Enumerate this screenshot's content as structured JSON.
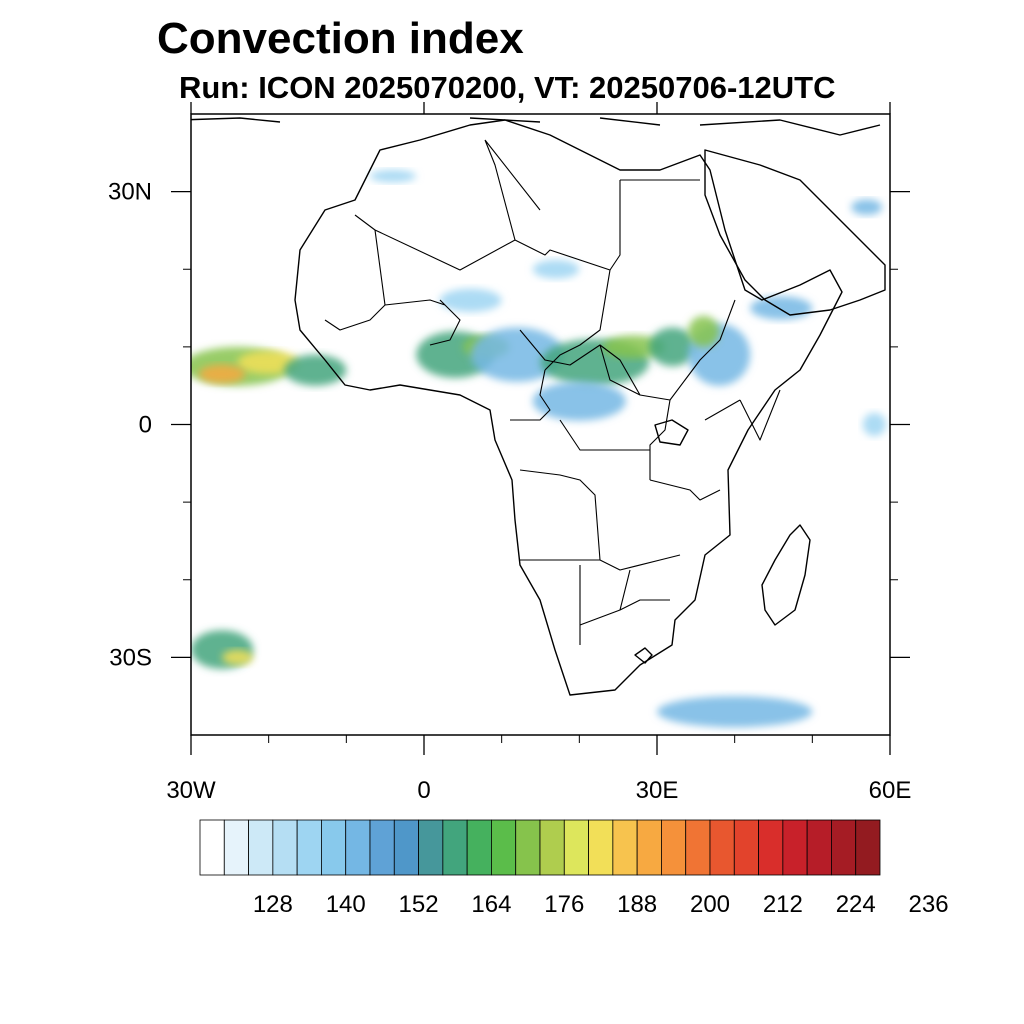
{
  "title": "Convection index",
  "subtitle": "Run: ICON 2025070200,  VT: 20250706-12UTC",
  "map": {
    "lon_range": [
      -30,
      60
    ],
    "lat_range": [
      -40,
      40
    ],
    "lon_ticks": [
      {
        "lon": -30,
        "label": "30W"
      },
      {
        "lon": 0,
        "label": "0"
      },
      {
        "lon": 30,
        "label": "30E"
      },
      {
        "lon": 60,
        "label": "60E"
      }
    ],
    "lat_ticks": [
      {
        "lat": 30,
        "label": "30N"
      },
      {
        "lat": 0,
        "label": "0"
      },
      {
        "lat": -30,
        "label": "30S"
      }
    ],
    "minor_lon_ticks": [
      -20,
      -10,
      10,
      20,
      40,
      50
    ],
    "minor_lat_ticks": [
      20,
      10,
      -10,
      -20
    ]
  },
  "colorbar": {
    "colors": [
      "#ffffff",
      "#e6f3fb",
      "#cde9f7",
      "#b5def3",
      "#9ed5f2",
      "#88c9ec",
      "#74b7e4",
      "#5fa2d6",
      "#4f97c9",
      "#46979b",
      "#42a57d",
      "#45b15e",
      "#5bbd4a",
      "#86c34c",
      "#afcd4e",
      "#dde65c",
      "#f2df58",
      "#f7c34e",
      "#f7a941",
      "#f5913a",
      "#f07434",
      "#e8572f",
      "#e2432c",
      "#d92e2b",
      "#c8212a",
      "#b61d28",
      "#a51c24",
      "#931b20"
    ],
    "labels": [
      "128",
      "140",
      "152",
      "164",
      "176",
      "188",
      "200",
      "212",
      "224",
      "236"
    ]
  },
  "field_blobs": [
    {
      "lon": -24,
      "lat": 7.5,
      "rx": 7,
      "ry": 2.5,
      "level": 3
    },
    {
      "lon": -20,
      "lat": 8,
      "rx": 4,
      "ry": 1.5,
      "level": 4
    },
    {
      "lon": -26,
      "lat": 6.5,
      "rx": 3,
      "ry": 1.2,
      "level": 5
    },
    {
      "lon": -14,
      "lat": 7,
      "rx": 4,
      "ry": 2,
      "level": 2
    },
    {
      "lon": 4,
      "lat": 9,
      "rx": 5,
      "ry": 3,
      "level": 2
    },
    {
      "lon": 8,
      "lat": 10,
      "rx": 3,
      "ry": 1.5,
      "level": 3
    },
    {
      "lon": 12,
      "lat": 9,
      "rx": 6,
      "ry": 3.5,
      "level": 1
    },
    {
      "lon": 22,
      "lat": 8,
      "rx": 7,
      "ry": 3,
      "level": 2
    },
    {
      "lon": 27,
      "lat": 10,
      "rx": 4,
      "ry": 1.5,
      "level": 3
    },
    {
      "lon": 32,
      "lat": 10,
      "rx": 3,
      "ry": 2.5,
      "level": 2
    },
    {
      "lon": 38,
      "lat": 9,
      "rx": 4,
      "ry": 4,
      "level": 1
    },
    {
      "lon": 36,
      "lat": 12,
      "rx": 2,
      "ry": 2,
      "level": 3
    },
    {
      "lon": 20,
      "lat": 3,
      "rx": 6,
      "ry": 2.5,
      "level": 1
    },
    {
      "lon": 6,
      "lat": 16,
      "rx": 4,
      "ry": 1.5,
      "level": 0
    },
    {
      "lon": 17,
      "lat": 20,
      "rx": 3,
      "ry": 1.2,
      "level": 0
    },
    {
      "lon": -4,
      "lat": 32,
      "rx": 3,
      "ry": 0.8,
      "level": 0
    },
    {
      "lon": -26,
      "lat": -29,
      "rx": 4,
      "ry": 2.5,
      "level": 2
    },
    {
      "lon": -24,
      "lat": -30,
      "rx": 2,
      "ry": 1,
      "level": 4
    },
    {
      "lon": 40,
      "lat": -37,
      "rx": 10,
      "ry": 2,
      "level": 1
    },
    {
      "lon": 57,
      "lat": 28,
      "rx": 2,
      "ry": 1,
      "level": 1
    },
    {
      "lon": 46,
      "lat": 15,
      "rx": 4,
      "ry": 1.5,
      "level": 1
    },
    {
      "lon": 58,
      "lat": 0,
      "rx": 1.5,
      "ry": 1.5,
      "level": 0
    }
  ]
}
